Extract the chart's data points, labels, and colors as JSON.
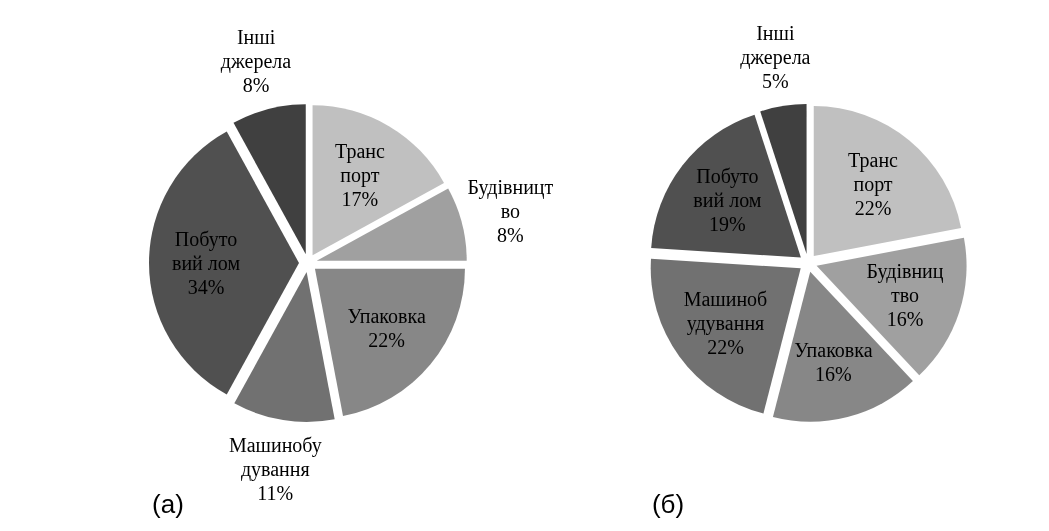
{
  "chart_data": [
    {
      "type": "pie",
      "title": "(а)",
      "categories": [
        "Транс\nпорт",
        "Будівницт\nво",
        "Упаковка",
        "Машинобу\nдування",
        "Побуто\nвий лом",
        "Інші\nджерела"
      ],
      "values": [
        17,
        8,
        22,
        11,
        34,
        8
      ],
      "colors": [
        "#c0c0c0",
        "#a0a0a0",
        "#878787",
        "#717171",
        "#505050",
        "#404040"
      ],
      "value_labels": [
        "17%",
        "8%",
        "22%",
        "11%",
        "34%",
        "8%"
      ]
    },
    {
      "type": "pie",
      "title": "(б)",
      "categories": [
        "Транс\nпорт",
        "Будівниц\nтво",
        "Упаковка",
        "Машиноб\nудування",
        "Побуто\nвий лом",
        "Інші\nджерела"
      ],
      "values": [
        22,
        16,
        16,
        22,
        19,
        5
      ],
      "colors": [
        "#c0c0c0",
        "#a0a0a0",
        "#878787",
        "#717171",
        "#505050",
        "#404040"
      ],
      "value_labels": [
        "22%",
        "16%",
        "16%",
        "22%",
        "19%",
        "5%"
      ]
    }
  ]
}
